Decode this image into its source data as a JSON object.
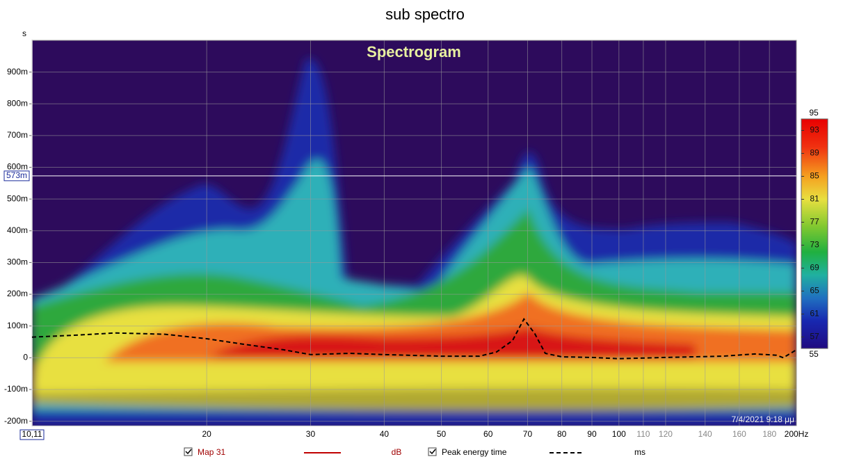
{
  "title": "sub spectro",
  "chart_data": {
    "type": "spectrogram",
    "plot_title": "Spectrogram",
    "y_unit": "s",
    "x_scale": "log",
    "xlim": [
      10.11,
      200
    ],
    "x_start_label": {
      "value": 10.11,
      "label": "10,11"
    },
    "xticks": [
      20,
      30,
      40,
      50,
      60,
      70,
      80,
      90,
      100,
      {
        "value": 200,
        "label": "200Hz"
      }
    ],
    "xticks_secondary": [
      110,
      120,
      140,
      160,
      180
    ],
    "ylim": [
      -0.214,
      1.0
    ],
    "yticks": [
      {
        "value": -0.2,
        "label": "-200m"
      },
      {
        "value": -0.1,
        "label": "-100m"
      },
      0,
      {
        "value": 0.1,
        "label": "100m"
      },
      {
        "value": 0.2,
        "label": "200m"
      },
      {
        "value": 0.3,
        "label": "300m"
      },
      {
        "value": 0.4,
        "label": "400m"
      },
      {
        "value": 0.5,
        "label": "500m"
      },
      {
        "value": 0.6,
        "label": "600m"
      },
      {
        "value": 0.7,
        "label": "700m"
      },
      {
        "value": 0.8,
        "label": "800m"
      },
      {
        "value": 0.9,
        "label": "900m"
      }
    ],
    "grid": true,
    "cursor": {
      "value": 0.573,
      "label": "573m"
    },
    "colorbar": {
      "lim": [
        55,
        95
      ],
      "ticks": [
        57,
        61,
        65,
        69,
        73,
        77,
        81,
        85,
        89,
        93
      ]
    },
    "spectrogram_trace": {
      "name": "Мар 31",
      "unit": "dB",
      "color": "#c00000"
    },
    "series": [
      {
        "name": "Peak energy time",
        "unit": "ms",
        "color": "#000000",
        "style": "dashed",
        "x": [
          10.11,
          12,
          14,
          17,
          20,
          23,
          27,
          30,
          35,
          40,
          50,
          58,
          62,
          66,
          69,
          72,
          75,
          80,
          90,
          100,
          120,
          150,
          170,
          185,
          190,
          200
        ],
        "values": [
          0.065,
          0.071,
          0.078,
          0.074,
          0.06,
          0.043,
          0.025,
          0.01,
          0.014,
          0.01,
          0.005,
          0.005,
          0.018,
          0.054,
          0.122,
          0.076,
          0.014,
          0.003,
          0.001,
          -0.003,
          0.001,
          0.005,
          0.012,
          0.008,
          0,
          0.025
        ]
      }
    ],
    "timestamp": "7/4/2021 9:18 μμ"
  }
}
